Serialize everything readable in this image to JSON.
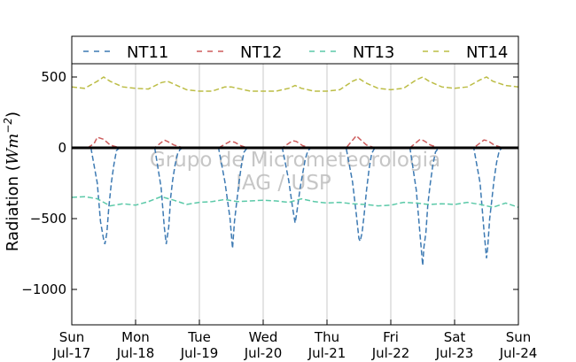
{
  "chart_data": {
    "type": "line",
    "title": "",
    "ylabel_main": "Radiation (",
    "ylabel_unit": "Wm",
    "ylabel_exp": "−2",
    "ylabel_close": ")",
    "ylim": [
      -1250,
      600
    ],
    "yticks": [
      500,
      0,
      -500,
      -1000
    ],
    "ytick_labels": [
      "500",
      "0",
      "−500",
      "−1000"
    ],
    "xlim": [
      0,
      7
    ],
    "xticks": [
      {
        "day": "Sun",
        "date": "Jul-17"
      },
      {
        "day": "Mon",
        "date": "Jul-18"
      },
      {
        "day": "Tue",
        "date": "Jul-19"
      },
      {
        "day": "Wed",
        "date": "Jul-20"
      },
      {
        "day": "Thu",
        "date": "Jul-21"
      },
      {
        "day": "Fri",
        "date": "Jul-22"
      },
      {
        "day": "Sat",
        "date": "Jul-23"
      },
      {
        "day": "Sun",
        "date": "Jul-24"
      }
    ],
    "x_unit_note": "days after Sun Jul-17 00:00",
    "grid_x": true,
    "zero_line": true,
    "legend_position": "top",
    "watermark": [
      "Grupo de Micrometeorologia",
      "IAG / USP"
    ],
    "series": [
      {
        "name": "NT11",
        "color": "#3d7ab3",
        "x": [
          0.3,
          0.4,
          0.45,
          0.5,
          0.52,
          0.55,
          0.58,
          0.62,
          0.66,
          0.7,
          0.75,
          1.3,
          1.4,
          1.45,
          1.48,
          1.5,
          1.52,
          1.55,
          1.58,
          1.62,
          1.66,
          1.7,
          1.75,
          2.3,
          2.4,
          2.48,
          2.52,
          2.55,
          2.58,
          2.62,
          2.66,
          2.7,
          2.75,
          3.3,
          3.4,
          3.46,
          3.5,
          3.52,
          3.55,
          3.58,
          3.62,
          3.66,
          3.7,
          3.75,
          4.3,
          4.4,
          4.46,
          4.5,
          4.52,
          4.55,
          4.58,
          4.62,
          4.66,
          4.7,
          4.75,
          5.3,
          5.4,
          5.46,
          5.5,
          5.52,
          5.55,
          5.58,
          5.62,
          5.66,
          5.7,
          5.75,
          6.3,
          6.4,
          6.46,
          6.5,
          6.52,
          6.55,
          6.58,
          6.62,
          6.66,
          6.7,
          6.75
        ],
        "y": [
          0,
          -250,
          -520,
          -650,
          -680,
          -600,
          -420,
          -250,
          -120,
          -20,
          0,
          0,
          -280,
          -560,
          -680,
          -620,
          -560,
          -350,
          -230,
          -120,
          -40,
          -10,
          0,
          0,
          -240,
          -500,
          -710,
          -520,
          -400,
          -250,
          -120,
          -30,
          0,
          0,
          -230,
          -420,
          -530,
          -480,
          -380,
          -280,
          -180,
          -80,
          -20,
          0,
          0,
          -240,
          -470,
          -640,
          -660,
          -600,
          -480,
          -300,
          -150,
          -40,
          0,
          0,
          -300,
          -620,
          -830,
          -700,
          -600,
          -400,
          -250,
          -120,
          -30,
          0,
          0,
          -250,
          -580,
          -780,
          -700,
          -500,
          -380,
          -220,
          -100,
          -20,
          0
        ]
      },
      {
        "name": "NT12",
        "color": "#cd5c5c",
        "x": [
          0.25,
          0.35,
          0.4,
          0.5,
          0.6,
          0.75,
          1.3,
          1.45,
          1.5,
          1.6,
          1.75,
          2.3,
          2.48,
          2.55,
          2.65,
          2.75,
          3.3,
          3.46,
          3.52,
          3.62,
          3.75,
          4.3,
          4.46,
          4.52,
          4.62,
          4.75,
          5.3,
          5.46,
          5.52,
          5.62,
          5.75,
          6.3,
          6.46,
          6.52,
          6.62,
          6.75
        ],
        "y": [
          0,
          30,
          75,
          60,
          20,
          0,
          0,
          55,
          45,
          20,
          0,
          0,
          45,
          40,
          15,
          0,
          0,
          50,
          45,
          15,
          0,
          0,
          85,
          60,
          20,
          0,
          0,
          60,
          50,
          20,
          0,
          0,
          55,
          50,
          20,
          0
        ]
      },
      {
        "name": "NT13",
        "color": "#5bc9a8",
        "x": [
          0.0,
          0.2,
          0.4,
          0.6,
          0.8,
          1.0,
          1.2,
          1.4,
          1.6,
          1.8,
          2.0,
          2.2,
          2.4,
          2.6,
          2.8,
          3.0,
          3.2,
          3.4,
          3.6,
          3.8,
          4.0,
          4.2,
          4.4,
          4.6,
          4.8,
          5.0,
          5.2,
          5.4,
          5.6,
          5.8,
          6.0,
          6.2,
          6.4,
          6.6,
          6.8,
          7.0
        ],
        "y": [
          -350,
          -345,
          -360,
          -410,
          -395,
          -405,
          -380,
          -345,
          -370,
          -400,
          -385,
          -380,
          -365,
          -380,
          -375,
          -370,
          -375,
          -385,
          -360,
          -380,
          -390,
          -385,
          -395,
          -400,
          -410,
          -405,
          -385,
          -390,
          -400,
          -395,
          -400,
          -385,
          -400,
          -420,
          -390,
          -420
        ]
      },
      {
        "name": "NT14",
        "color": "#bcbd45",
        "x": [
          0.0,
          0.2,
          0.4,
          0.5,
          0.6,
          0.8,
          1.0,
          1.2,
          1.4,
          1.5,
          1.6,
          1.8,
          2.0,
          2.2,
          2.4,
          2.5,
          2.6,
          2.8,
          3.0,
          3.2,
          3.4,
          3.5,
          3.6,
          3.8,
          4.0,
          4.2,
          4.4,
          4.5,
          4.6,
          4.8,
          5.0,
          5.2,
          5.4,
          5.5,
          5.6,
          5.8,
          6.0,
          6.2,
          6.4,
          6.5,
          6.6,
          6.8,
          7.0
        ],
        "y": [
          430,
          420,
          470,
          500,
          470,
          430,
          420,
          415,
          460,
          470,
          450,
          410,
          400,
          400,
          430,
          430,
          420,
          400,
          400,
          400,
          420,
          440,
          420,
          400,
          400,
          410,
          470,
          490,
          460,
          420,
          410,
          420,
          480,
          500,
          470,
          430,
          420,
          430,
          480,
          500,
          470,
          440,
          430
        ]
      }
    ]
  }
}
